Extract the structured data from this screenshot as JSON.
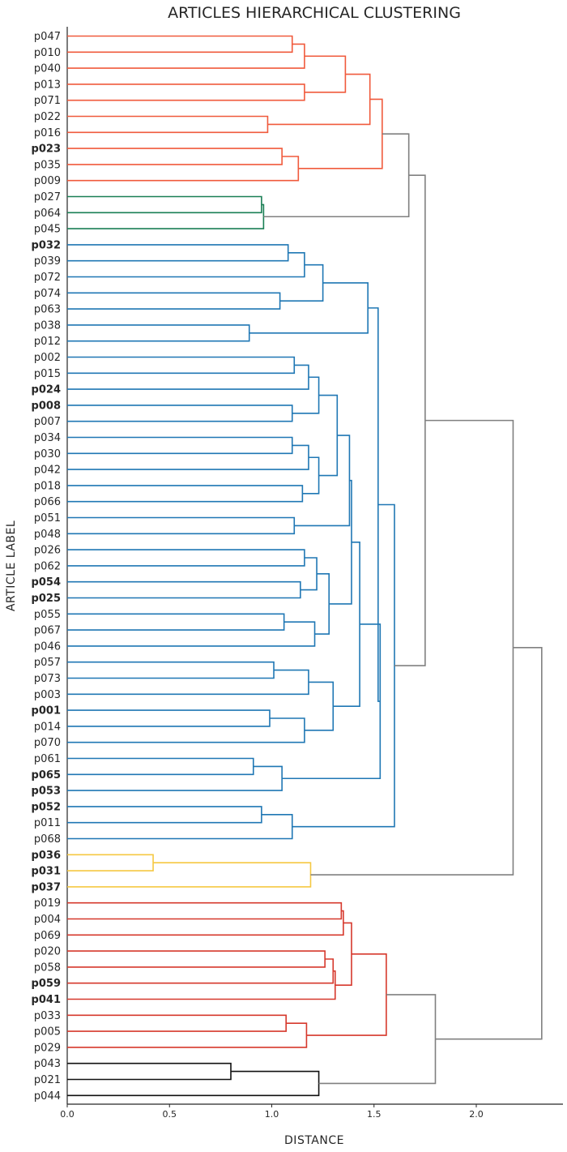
{
  "chart_data": {
    "type": "dendrogram",
    "title": "ARTICLES HIERARCHICAL CLUSTERING",
    "xlabel": "DISTANCE",
    "ylabel": "ARTICLE LABEL",
    "xlim": [
      0,
      2.44
    ],
    "xticks": [
      "0.0",
      "0.5",
      "1.0",
      "1.5",
      "2.0"
    ],
    "leaves": [
      "p047",
      "p010",
      "p040",
      "p013",
      "p071",
      "p022",
      "p016",
      "p023",
      "p035",
      "p009",
      "p027",
      "p064",
      "p045",
      "p032",
      "p039",
      "p072",
      "p074",
      "p063",
      "p038",
      "p012",
      "p002",
      "p015",
      "p024",
      "p008",
      "p007",
      "p034",
      "p030",
      "p042",
      "p018",
      "p066",
      "p051",
      "p048",
      "p026",
      "p062",
      "p054",
      "p025",
      "p055",
      "p067",
      "p046",
      "p057",
      "p073",
      "p003",
      "p001",
      "p014",
      "p070",
      "p061",
      "p065",
      "p053",
      "p052",
      "p011",
      "p068",
      "p036",
      "p031",
      "p037",
      "p019",
      "p004",
      "p069",
      "p020",
      "p058",
      "p059",
      "p041",
      "p033",
      "p005",
      "p029",
      "p043",
      "p021",
      "p044"
    ],
    "bold_leaves": [
      "p023",
      "p032",
      "p024",
      "p008",
      "p054",
      "p025",
      "p001",
      "p065",
      "p053",
      "p052",
      "p036",
      "p031",
      "p037",
      "p059",
      "p041"
    ],
    "cluster_colors": {
      "orange": "#f05a3c",
      "green": "#1a7f55",
      "blue": "#1f77b4",
      "yellow": "#f5c842",
      "red": "#d6382c",
      "black": "#111111",
      "above": "#808080"
    },
    "merges": [
      {
        "a": "p047",
        "b": "p010",
        "h": 1.1,
        "c": "orange"
      },
      {
        "a": 0,
        "b": "p040",
        "h": 1.16,
        "c": "orange"
      },
      {
        "a": "p013",
        "b": "p071",
        "h": 1.16,
        "c": "orange"
      },
      {
        "a": 1,
        "b": 2,
        "h": 1.36,
        "c": "orange"
      },
      {
        "a": "p022",
        "b": "p016",
        "h": 0.98,
        "c": "orange"
      },
      {
        "a": 3,
        "b": 4,
        "h": 1.48,
        "c": "orange"
      },
      {
        "a": "p023",
        "b": "p035",
        "h": 1.05,
        "c": "orange"
      },
      {
        "a": 6,
        "b": "p009",
        "h": 1.13,
        "c": "orange"
      },
      {
        "a": 5,
        "b": 7,
        "h": 1.54,
        "c": "orange"
      },
      {
        "a": "p027",
        "b": "p064",
        "h": 0.95,
        "c": "green"
      },
      {
        "a": 9,
        "b": "p045",
        "h": 0.96,
        "c": "green"
      },
      {
        "a": 8,
        "b": 10,
        "h": 1.67,
        "c": "above"
      },
      {
        "a": "p032",
        "b": "p039",
        "h": 1.08,
        "c": "blue"
      },
      {
        "a": 12,
        "b": "p072",
        "h": 1.16,
        "c": "blue"
      },
      {
        "a": "p074",
        "b": "p063",
        "h": 1.04,
        "c": "blue"
      },
      {
        "a": 13,
        "b": 14,
        "h": 1.25,
        "c": "blue"
      },
      {
        "a": "p038",
        "b": "p012",
        "h": 0.89,
        "c": "blue"
      },
      {
        "a": 15,
        "b": 16,
        "h": 1.47,
        "c": "blue"
      },
      {
        "a": "p002",
        "b": "p015",
        "h": 1.11,
        "c": "blue"
      },
      {
        "a": 18,
        "b": "p024",
        "h": 1.18,
        "c": "blue"
      },
      {
        "a": "p008",
        "b": "p007",
        "h": 1.1,
        "c": "blue"
      },
      {
        "a": 19,
        "b": 20,
        "h": 1.23,
        "c": "blue"
      },
      {
        "a": "p034",
        "b": "p030",
        "h": 1.1,
        "c": "blue"
      },
      {
        "a": 22,
        "b": "p042",
        "h": 1.18,
        "c": "blue"
      },
      {
        "a": "p018",
        "b": "p066",
        "h": 1.15,
        "c": "blue"
      },
      {
        "a": 23,
        "b": 24,
        "h": 1.23,
        "c": "blue"
      },
      {
        "a": 21,
        "b": 25,
        "h": 1.32,
        "c": "blue"
      },
      {
        "a": "p051",
        "b": "p048",
        "h": 1.11,
        "c": "blue"
      },
      {
        "a": 26,
        "b": 27,
        "h": 1.38,
        "c": "blue"
      },
      {
        "a": "p026",
        "b": "p062",
        "h": 1.16,
        "c": "blue"
      },
      {
        "a": "p054",
        "b": "p025",
        "h": 1.14,
        "c": "blue"
      },
      {
        "a": 29,
        "b": 30,
        "h": 1.22,
        "c": "blue"
      },
      {
        "a": "p055",
        "b": "p067",
        "h": 1.06,
        "c": "blue"
      },
      {
        "a": 32,
        "b": "p046",
        "h": 1.21,
        "c": "blue"
      },
      {
        "a": 31,
        "b": 33,
        "h": 1.28,
        "c": "blue"
      },
      {
        "a": 28,
        "b": 34,
        "h": 1.39,
        "c": "blue"
      },
      {
        "a": "p057",
        "b": "p073",
        "h": 1.01,
        "c": "blue"
      },
      {
        "a": 36,
        "b": "p003",
        "h": 1.18,
        "c": "blue"
      },
      {
        "a": "p001",
        "b": "p014",
        "h": 0.99,
        "c": "blue"
      },
      {
        "a": 38,
        "b": "p070",
        "h": 1.16,
        "c": "blue"
      },
      {
        "a": 37,
        "b": 39,
        "h": 1.3,
        "c": "blue"
      },
      {
        "a": 35,
        "b": 40,
        "h": 1.43,
        "c": "blue"
      },
      {
        "a": "p061",
        "b": "p065",
        "h": 0.91,
        "c": "blue"
      },
      {
        "a": 42,
        "b": "p053",
        "h": 1.05,
        "c": "blue"
      },
      {
        "a": 41,
        "b": 43,
        "h": 1.53,
        "c": "blue"
      },
      {
        "a": 17,
        "b": 44,
        "h": 1.52,
        "c": "blue"
      },
      {
        "a": "p052",
        "b": "p011",
        "h": 0.95,
        "c": "blue"
      },
      {
        "a": 46,
        "b": "p068",
        "h": 1.1,
        "c": "blue"
      },
      {
        "a": 45,
        "b": 47,
        "h": 1.6,
        "c": "blue"
      },
      {
        "a": 11,
        "b": 48,
        "h": 1.75,
        "c": "above"
      },
      {
        "a": "p036",
        "b": "p031",
        "h": 0.42,
        "c": "yellow"
      },
      {
        "a": 50,
        "b": "p037",
        "h": 1.19,
        "c": "yellow"
      },
      {
        "a": 49,
        "b": 51,
        "h": 2.18,
        "c": "above"
      },
      {
        "a": "p019",
        "b": "p004",
        "h": 1.34,
        "c": "red"
      },
      {
        "a": 53,
        "b": "p069",
        "h": 1.35,
        "c": "red"
      },
      {
        "a": "p020",
        "b": "p058",
        "h": 1.26,
        "c": "red"
      },
      {
        "a": 55,
        "b": "p059",
        "h": 1.3,
        "c": "red"
      },
      {
        "a": 56,
        "b": "p041",
        "h": 1.31,
        "c": "red"
      },
      {
        "a": 54,
        "b": 57,
        "h": 1.39,
        "c": "red"
      },
      {
        "a": "p033",
        "b": "p005",
        "h": 1.07,
        "c": "red"
      },
      {
        "a": 59,
        "b": "p029",
        "h": 1.17,
        "c": "red"
      },
      {
        "a": 58,
        "b": 60,
        "h": 1.56,
        "c": "red"
      },
      {
        "a": "p043",
        "b": "p021",
        "h": 0.8,
        "c": "black"
      },
      {
        "a": 62,
        "b": "p044",
        "h": 1.23,
        "c": "black"
      },
      {
        "a": 61,
        "b": 63,
        "h": 1.8,
        "c": "above"
      },
      {
        "a": 52,
        "b": 64,
        "h": 2.32,
        "c": "above"
      }
    ]
  }
}
